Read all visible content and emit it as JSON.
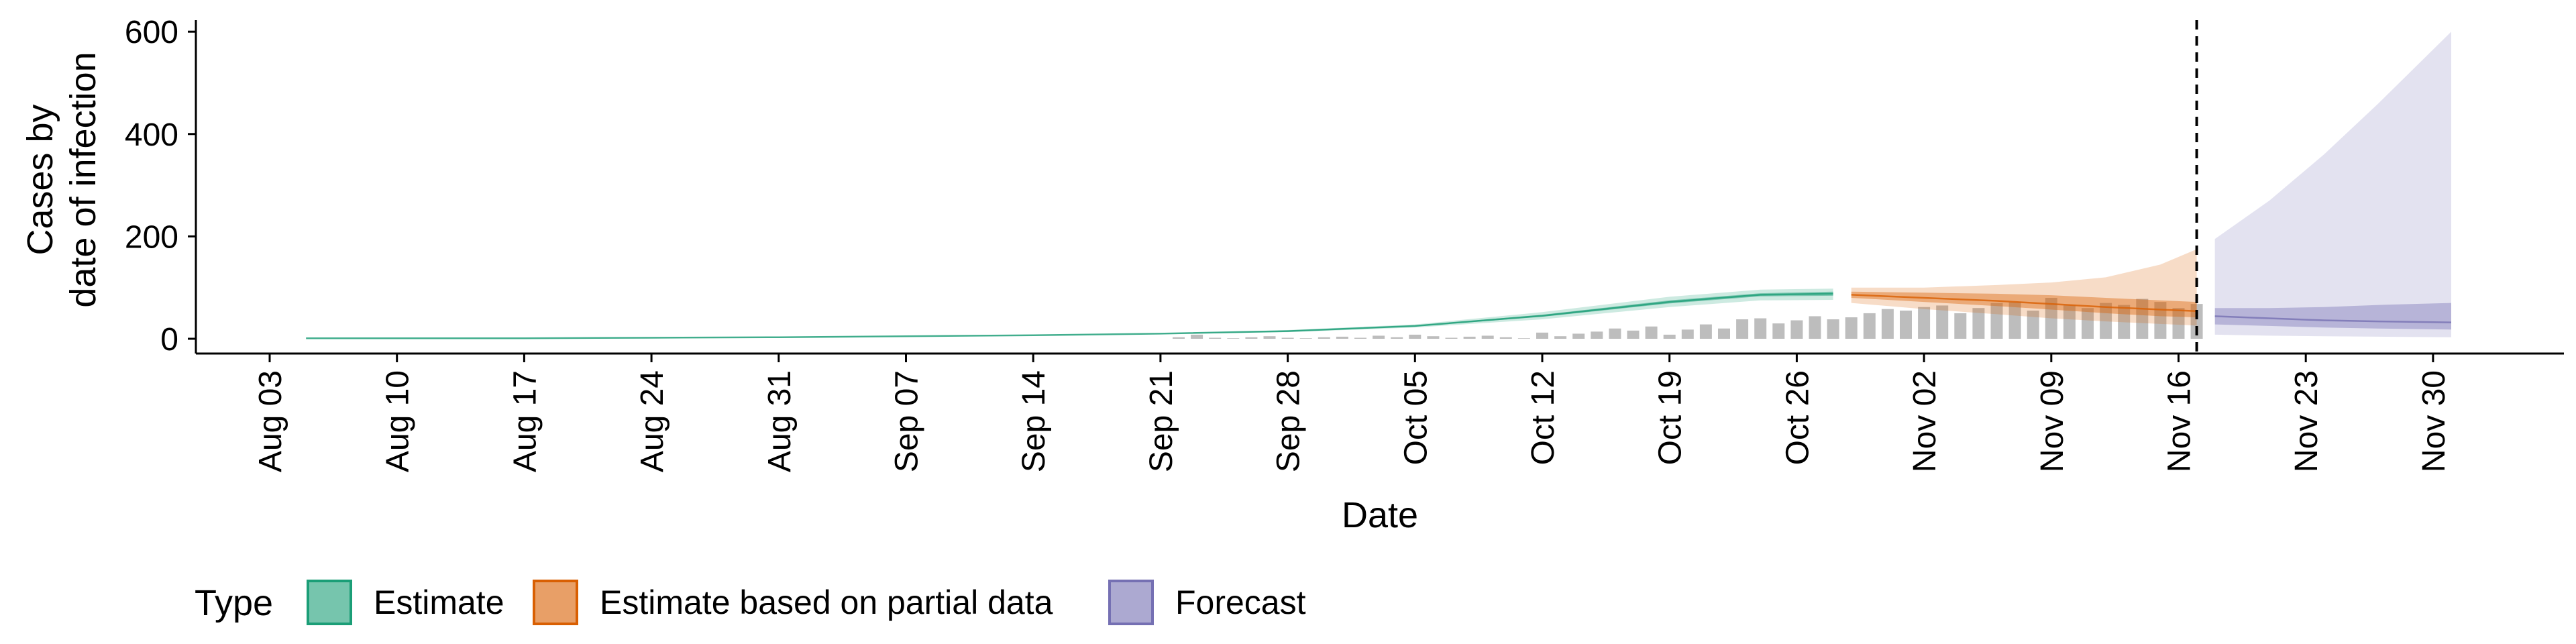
{
  "chart_data": {
    "type": "area",
    "title": "",
    "xlabel": "Date",
    "ylabel": [
      "Cases by",
      "date of infection"
    ],
    "ylim": [
      -25,
      630
    ],
    "yticks": [
      0,
      200,
      400,
      600
    ],
    "xticks": [
      "Aug 03",
      "Aug 10",
      "Aug 17",
      "Aug 24",
      "Aug 31",
      "Sep 07",
      "Sep 14",
      "Sep 21",
      "Sep 28",
      "Oct 05",
      "Oct 12",
      "Oct 19",
      "Oct 26",
      "Nov 02",
      "Nov 09",
      "Nov 16",
      "Nov 23",
      "Nov 30"
    ],
    "grid": false,
    "legend": {
      "title": "Type",
      "position": "bottom",
      "entries": [
        {
          "label": "Estimate",
          "color": "#1B9E77"
        },
        {
          "label": "Estimate based on partial data",
          "color": "#D95F02"
        },
        {
          "label": "Forecast",
          "color": "#7570B3"
        }
      ]
    },
    "forecast_start": "2020-11-17",
    "reported_cases": {
      "color": "#bdbdbd",
      "x": [
        "2020-09-22",
        "2020-09-23",
        "2020-09-24",
        "2020-09-25",
        "2020-09-26",
        "2020-09-27",
        "2020-09-28",
        "2020-09-29",
        "2020-09-30",
        "2020-10-01",
        "2020-10-02",
        "2020-10-03",
        "2020-10-04",
        "2020-10-05",
        "2020-10-06",
        "2020-10-07",
        "2020-10-08",
        "2020-10-09",
        "2020-10-10",
        "2020-10-11",
        "2020-10-12",
        "2020-10-13",
        "2020-10-14",
        "2020-10-15",
        "2020-10-16",
        "2020-10-17",
        "2020-10-18",
        "2020-10-19",
        "2020-10-20",
        "2020-10-21",
        "2020-10-22",
        "2020-10-23",
        "2020-10-24",
        "2020-10-25",
        "2020-10-26",
        "2020-10-27",
        "2020-10-28",
        "2020-10-29",
        "2020-10-30",
        "2020-10-31",
        "2020-11-01",
        "2020-11-02",
        "2020-11-03",
        "2020-11-04",
        "2020-11-05",
        "2020-11-06",
        "2020-11-07",
        "2020-11-08",
        "2020-11-09",
        "2020-11-10",
        "2020-11-11",
        "2020-11-12",
        "2020-11-13",
        "2020-11-14",
        "2020-11-15",
        "2020-11-16",
        "2020-11-17"
      ],
      "values": [
        3,
        8,
        2,
        1,
        3,
        5,
        2,
        1,
        3,
        4,
        2,
        6,
        3,
        8,
        5,
        2,
        4,
        6,
        3,
        1,
        12,
        5,
        10,
        14,
        20,
        16,
        24,
        8,
        18,
        28,
        20,
        38,
        40,
        30,
        36,
        44,
        38,
        42,
        50,
        58,
        55,
        62,
        65,
        50,
        60,
        70,
        72,
        55,
        80,
        65,
        60,
        70,
        66,
        78,
        72,
        60,
        68
      ]
    },
    "estimate": {
      "x": [
        "2020-08-05",
        "2020-08-10",
        "2020-08-17",
        "2020-08-24",
        "2020-08-31",
        "2020-09-07",
        "2020-09-14",
        "2020-09-21",
        "2020-09-28",
        "2020-10-05",
        "2020-10-12",
        "2020-10-19",
        "2020-10-24",
        "2020-10-28"
      ],
      "median": [
        1,
        1,
        1,
        2,
        3,
        5,
        7,
        10,
        15,
        25,
        45,
        72,
        86,
        88
      ],
      "lower_90": [
        0,
        0,
        0,
        1,
        2,
        4,
        6,
        9,
        13,
        22,
        38,
        62,
        75,
        76
      ],
      "upper_90": [
        2,
        2,
        2,
        3,
        4,
        6,
        8,
        11,
        17,
        28,
        52,
        82,
        96,
        98
      ],
      "lower_50": [
        1,
        1,
        1,
        2,
        3,
        5,
        7,
        10,
        14,
        24,
        43,
        69,
        83,
        84
      ],
      "upper_50": [
        1,
        1,
        1,
        2,
        3,
        5,
        7,
        10,
        16,
        26,
        47,
        75,
        89,
        92
      ]
    },
    "estimate_partial": {
      "x": [
        "2020-10-29",
        "2020-11-02",
        "2020-11-06",
        "2020-11-09",
        "2020-11-12",
        "2020-11-15",
        "2020-11-17"
      ],
      "median": [
        86,
        80,
        74,
        68,
        62,
        57,
        54
      ],
      "lower_90": [
        70,
        58,
        48,
        40,
        34,
        29,
        26
      ],
      "upper_90": [
        100,
        100,
        105,
        110,
        120,
        145,
        175
      ],
      "lower_50": [
        80,
        72,
        64,
        57,
        50,
        44,
        42
      ],
      "upper_50": [
        92,
        90,
        88,
        85,
        80,
        75,
        72
      ]
    },
    "forecast": {
      "x": [
        "2020-11-18",
        "2020-11-21",
        "2020-11-24",
        "2020-11-27",
        "2020-12-01"
      ],
      "median": [
        44,
        40,
        36,
        34,
        32
      ],
      "lower_90": [
        8,
        6,
        5,
        4,
        3
      ],
      "upper_90": [
        195,
        270,
        360,
        460,
        600
      ],
      "lower_50": [
        28,
        25,
        22,
        20,
        18
      ],
      "upper_50": [
        60,
        60,
        62,
        66,
        70
      ]
    }
  }
}
